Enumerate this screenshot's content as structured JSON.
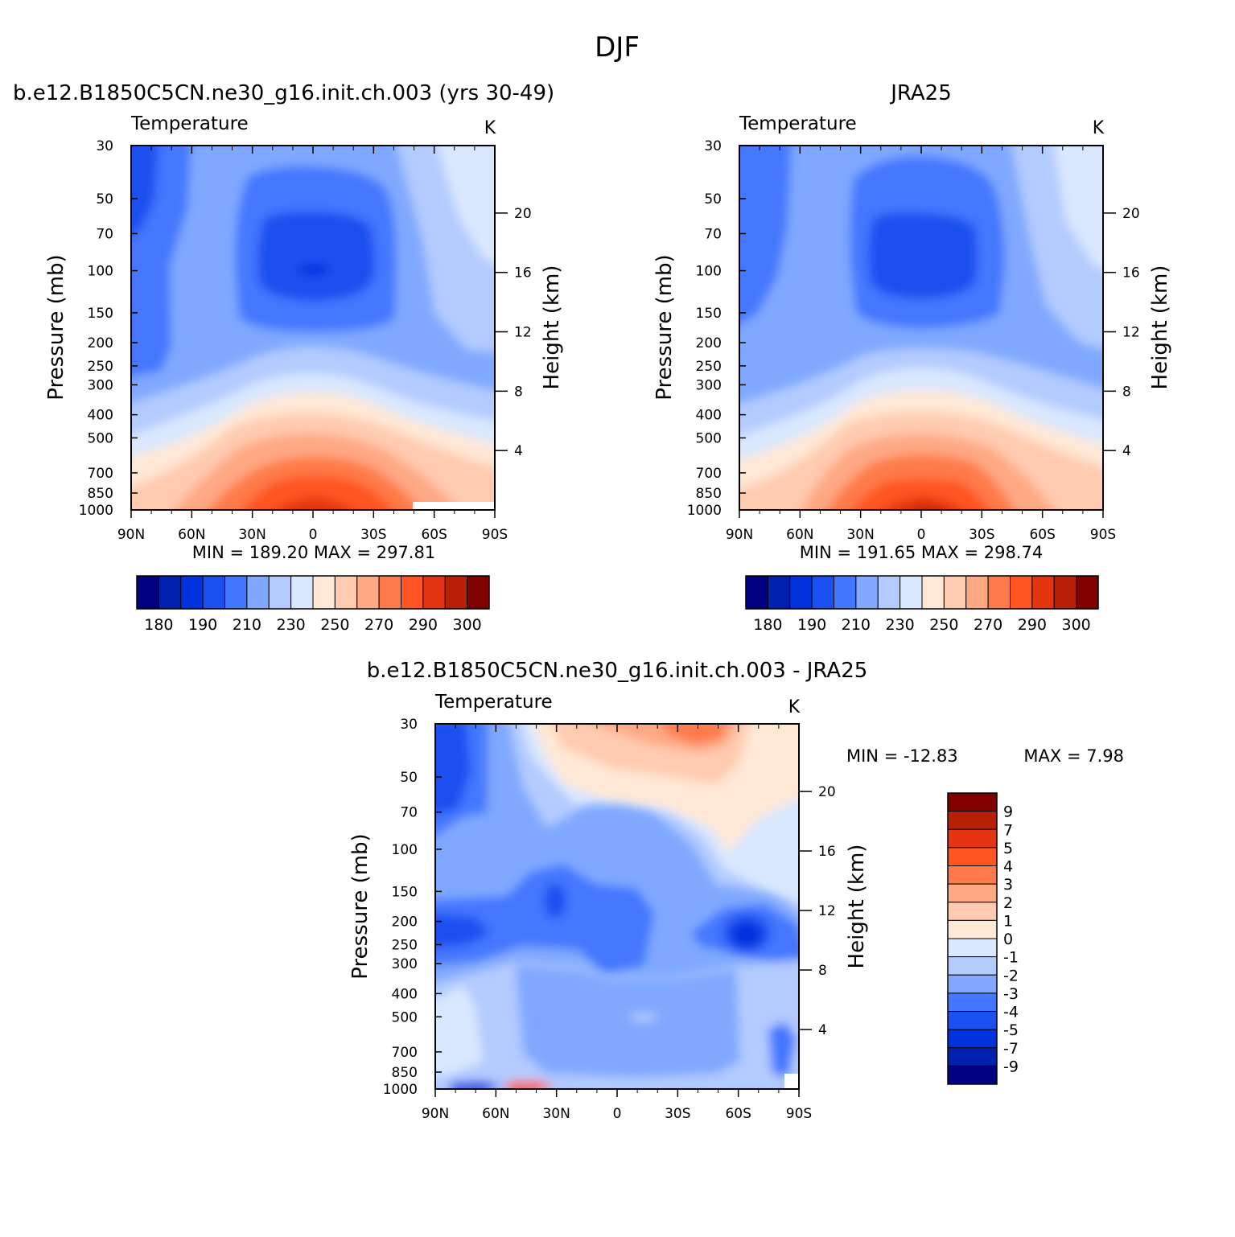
{
  "figure": {
    "title": "DJF"
  },
  "chart_data": [
    {
      "type": "heatmap",
      "title": "b.e12.B1850C5CN.ne30_g16.init.ch.003 (yrs 30-49)",
      "subtitle": "Temperature",
      "units": "K",
      "ylabel": "Pressure (mb)",
      "ylabel_right": "Height (km)",
      "x_ticks": [
        "90N",
        "60N",
        "30N",
        "0",
        "30S",
        "60S",
        "90S"
      ],
      "y_ticks": [
        "30",
        "50",
        "70",
        "100",
        "150",
        "200",
        "250",
        "300",
        "400",
        "500",
        "700",
        "850",
        "1000"
      ],
      "y_ticks_right": [
        "20",
        "16",
        "12",
        "8",
        "4"
      ],
      "stats": "MIN = 189.20 MAX = 297.81",
      "colorbar": {
        "labels": [
          "180",
          "190",
          "210",
          "230",
          "250",
          "270",
          "290",
          "300"
        ],
        "colors": [
          "#000080",
          "#0020b0",
          "#0033dd",
          "#1a4ff0",
          "#4477ff",
          "#80a8ff",
          "#b4cbff",
          "#d9e8ff",
          "#ffe8d6",
          "#ffcbb0",
          "#ffa884",
          "#ff7a4a",
          "#ff5522",
          "#e53510",
          "#b82005",
          "#800000"
        ]
      }
    },
    {
      "type": "heatmap",
      "title": "JRA25",
      "subtitle": "Temperature",
      "units": "K",
      "ylabel": "Pressure (mb)",
      "ylabel_right": "Height (km)",
      "x_ticks": [
        "90N",
        "60N",
        "30N",
        "0",
        "30S",
        "60S",
        "90S"
      ],
      "y_ticks": [
        "30",
        "50",
        "70",
        "100",
        "150",
        "200",
        "250",
        "300",
        "400",
        "500",
        "700",
        "850",
        "1000"
      ],
      "y_ticks_right": [
        "20",
        "16",
        "12",
        "8",
        "4"
      ],
      "stats": "MIN = 191.65 MAX = 298.74",
      "colorbar": {
        "labels": [
          "180",
          "190",
          "210",
          "230",
          "250",
          "270",
          "290",
          "300"
        ],
        "colors": [
          "#000080",
          "#0020b0",
          "#0033dd",
          "#1a4ff0",
          "#4477ff",
          "#80a8ff",
          "#b4cbff",
          "#d9e8ff",
          "#ffe8d6",
          "#ffcbb0",
          "#ffa884",
          "#ff7a4a",
          "#ff5522",
          "#e53510",
          "#b82005",
          "#800000"
        ]
      }
    },
    {
      "type": "heatmap",
      "title": "b.e12.B1850C5CN.ne30_g16.init.ch.003 - JRA25",
      "subtitle": "Temperature",
      "units": "K",
      "ylabel": "Pressure (mb)",
      "ylabel_right": "Height (km)",
      "x_ticks": [
        "90N",
        "60N",
        "30N",
        "0",
        "30S",
        "60S",
        "90S"
      ],
      "y_ticks": [
        "30",
        "50",
        "70",
        "100",
        "150",
        "200",
        "250",
        "300",
        "400",
        "500",
        "700",
        "850",
        "1000"
      ],
      "y_ticks_right": [
        "20",
        "16",
        "12",
        "8",
        "4"
      ],
      "stats_min": "MIN = -12.83",
      "stats_max": "MAX = 7.98",
      "colorbar": {
        "labels": [
          "9",
          "7",
          "5",
          "4",
          "3",
          "2",
          "1",
          "0",
          "-1",
          "-2",
          "-3",
          "-4",
          "-5",
          "-7",
          "-9"
        ],
        "colors": [
          "#800000",
          "#b82005",
          "#e53510",
          "#ff5522",
          "#ff7a4a",
          "#ffa884",
          "#ffcbb0",
          "#ffe8d6",
          "#d9e8ff",
          "#b4cbff",
          "#80a8ff",
          "#4477ff",
          "#1a4ff0",
          "#0033dd",
          "#0020b0",
          "#000080"
        ]
      }
    }
  ]
}
